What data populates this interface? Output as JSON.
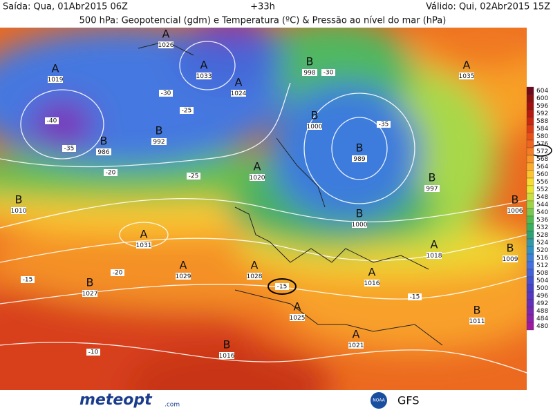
{
  "header": {
    "issued": "Saída: Qua, 01Abr2015 06Z",
    "lead": "+33h",
    "valid": "Válido: Qui, 02Abr2015 15Z",
    "title": "500 hPa: Geopotencial (gdm) e Temperatura (ºC) & Pressão ao nível do mar (hPa)"
  },
  "scale": [
    {
      "value": 604,
      "color": "#6e0a1e"
    },
    {
      "value": 600,
      "color": "#8c1010"
    },
    {
      "value": 596,
      "color": "#a01010"
    },
    {
      "value": 592,
      "color": "#b41a10"
    },
    {
      "value": 588,
      "color": "#c82810"
    },
    {
      "value": 584,
      "color": "#dc3c14"
    },
    {
      "value": 580,
      "color": "#e85018"
    },
    {
      "value": 576,
      "color": "#f06420"
    },
    {
      "value": 572,
      "color": "#f47c24"
    },
    {
      "value": 568,
      "color": "#f89428"
    },
    {
      "value": 564,
      "color": "#fcac2c"
    },
    {
      "value": 560,
      "color": "#fcc430"
    },
    {
      "value": 556,
      "color": "#f8dc30"
    },
    {
      "value": 552,
      "color": "#e8e834"
    },
    {
      "value": 548,
      "color": "#c8e040"
    },
    {
      "value": 544,
      "color": "#a0d448"
    },
    {
      "value": 540,
      "color": "#78c850"
    },
    {
      "value": 536,
      "color": "#50bc50"
    },
    {
      "value": 532,
      "color": "#38b060"
    },
    {
      "value": 528,
      "color": "#30a078"
    },
    {
      "value": 524,
      "color": "#3098a8"
    },
    {
      "value": 520,
      "color": "#3090c8"
    },
    {
      "value": 516,
      "color": "#3c80d8"
    },
    {
      "value": 512,
      "color": "#4470e0"
    },
    {
      "value": 508,
      "color": "#4460d8"
    },
    {
      "value": 504,
      "color": "#4450d0"
    },
    {
      "value": 500,
      "color": "#4840c8"
    },
    {
      "value": 496,
      "color": "#5438c0"
    },
    {
      "value": 492,
      "color": "#6430b8"
    },
    {
      "value": 488,
      "color": "#7828b0"
    },
    {
      "value": 484,
      "color": "#8c20a8"
    },
    {
      "value": 480,
      "color": "#a018a0"
    }
  ],
  "centers": [
    {
      "letter": "A",
      "value": 1019
    },
    {
      "letter": "A",
      "value": 1026
    },
    {
      "letter": "A",
      "value": 1033
    },
    {
      "letter": "A",
      "value": 1024
    },
    {
      "letter": "B",
      "value": 998
    },
    {
      "letter": "B",
      "value": 992
    },
    {
      "letter": "B",
      "value": 986
    },
    {
      "letter": "B",
      "value": 1000
    },
    {
      "letter": "B",
      "value": 989
    },
    {
      "letter": "A",
      "value": 1020
    },
    {
      "letter": "B",
      "value": 997
    },
    {
      "letter": "B",
      "value": 1010
    },
    {
      "letter": "A",
      "value": 1031
    },
    {
      "letter": "A",
      "value": 1029
    },
    {
      "letter": "A",
      "value": 1028
    },
    {
      "letter": "B",
      "value": 1027
    },
    {
      "letter": "A",
      "value": 1025
    },
    {
      "letter": "A",
      "value": 1016
    },
    {
      "letter": "B",
      "value": 1011
    },
    {
      "letter": "A",
      "value": 1018
    },
    {
      "letter": "B",
      "value": 1009
    },
    {
      "letter": "B",
      "value": 1006
    },
    {
      "letter": "A",
      "value": 1035
    },
    {
      "letter": "B",
      "value": 1016
    },
    {
      "letter": "A",
      "value": 1021
    },
    {
      "letter": "B",
      "value": 1000
    }
  ],
  "temperatures": [
    -40,
    -35,
    -30,
    -25,
    -20,
    -15,
    -10,
    -15,
    -20,
    -25,
    -30,
    -35
  ],
  "highlight": -15,
  "footer": {
    "logo": "meteopt",
    "logo_suffix": ".com",
    "agency": "NOAA",
    "model": "GFS"
  }
}
